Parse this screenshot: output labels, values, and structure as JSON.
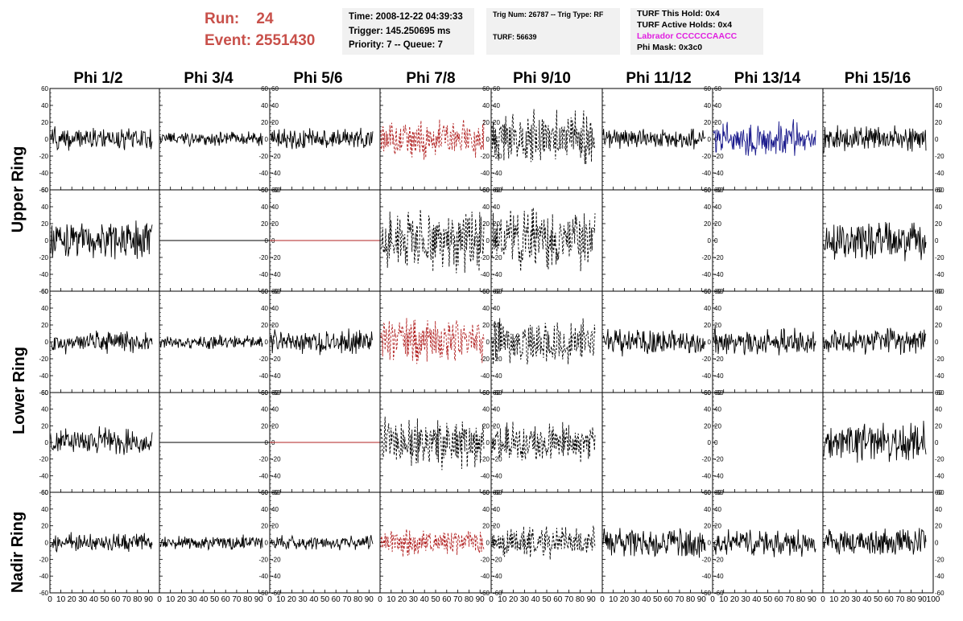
{
  "header": {
    "run_label": "Run:",
    "run_value": "24",
    "event_label": "Event:",
    "event_value": "2551430"
  },
  "info_box_1": {
    "time": "Time: 2008-12-22 04:39:33",
    "trigger": "Trigger: 145.250695 ms",
    "priority": "Priority: 7 -- Queue: 7"
  },
  "info_box_2": {
    "trig": "Trig Num: 26787 -- Trig Type: RF",
    "turf": "TURF: 56639"
  },
  "info_box_3": {
    "this_hold": "TURF This Hold: 0x4",
    "active_holds": "TURF Active Holds: 0x4",
    "labrador": "Labrador CCCCCCAACC",
    "phi_mask": "Phi Mask: 0x3c0"
  },
  "columns": [
    "Phi 1/2",
    "Phi 3/4",
    "Phi 5/6",
    "Phi 7/8",
    "Phi 9/10",
    "Phi 11/12",
    "Phi 13/14",
    "Phi 15/16"
  ],
  "rings": [
    "Upper Ring",
    "Lower Ring",
    "Nadir Ring"
  ],
  "colors": {
    "black": "#000000",
    "red": "#b22222",
    "blue": "#1a1a8c",
    "run_text": "#c8504a",
    "magenta": "#e020e0"
  },
  "chart_data": {
    "type": "line",
    "title": "",
    "ylim": [
      -60,
      60
    ],
    "xlim": [
      0,
      100
    ],
    "y_ticks": [
      -60,
      -40,
      -20,
      0,
      20,
      40,
      60
    ],
    "x_ticks": [
      0,
      10,
      20,
      30,
      40,
      50,
      60,
      70,
      80,
      90,
      100
    ],
    "panels": [
      {
        "row": 0,
        "col": 0,
        "style": "solid",
        "color": "black",
        "amplitude": 16
      },
      {
        "row": 0,
        "col": 1,
        "style": "solid",
        "color": "black",
        "amplitude": 10
      },
      {
        "row": 0,
        "col": 2,
        "style": "solid",
        "color": "black",
        "amplitude": 14
      },
      {
        "row": 0,
        "col": 3,
        "style": "dashed",
        "color": "red",
        "amplitude": 26
      },
      {
        "row": 0,
        "col": 4,
        "style": "dashed",
        "color": "black",
        "amplitude": 38
      },
      {
        "row": 0,
        "col": 5,
        "style": "solid",
        "color": "black",
        "amplitude": 14
      },
      {
        "row": 0,
        "col": 6,
        "style": "solid",
        "color": "blue",
        "amplitude": 26
      },
      {
        "row": 0,
        "col": 7,
        "style": "solid",
        "color": "black",
        "amplitude": 18
      },
      {
        "row": 1,
        "col": 0,
        "style": "solid",
        "color": "black",
        "amplitude": 26
      },
      {
        "row": 1,
        "col": 1,
        "style": "flat",
        "color": "black",
        "amplitude": 0
      },
      {
        "row": 1,
        "col": 2,
        "style": "flat",
        "color": "red",
        "amplitude": 0
      },
      {
        "row": 1,
        "col": 3,
        "style": "dashed",
        "color": "black",
        "amplitude": 42
      },
      {
        "row": 1,
        "col": 4,
        "style": "dashed",
        "color": "black",
        "amplitude": 42
      },
      {
        "row": 1,
        "col": 5,
        "style": "none",
        "color": "black",
        "amplitude": 0
      },
      {
        "row": 1,
        "col": 6,
        "style": "none",
        "color": "black",
        "amplitude": 0
      },
      {
        "row": 1,
        "col": 7,
        "style": "solid",
        "color": "black",
        "amplitude": 28
      },
      {
        "row": 2,
        "col": 0,
        "style": "solid",
        "color": "black",
        "amplitude": 16
      },
      {
        "row": 2,
        "col": 1,
        "style": "solid",
        "color": "black",
        "amplitude": 9
      },
      {
        "row": 2,
        "col": 2,
        "style": "solid",
        "color": "black",
        "amplitude": 18
      },
      {
        "row": 2,
        "col": 3,
        "style": "dashed",
        "color": "red",
        "amplitude": 32
      },
      {
        "row": 2,
        "col": 4,
        "style": "dashed",
        "color": "black",
        "amplitude": 30
      },
      {
        "row": 2,
        "col": 5,
        "style": "solid",
        "color": "black",
        "amplitude": 18
      },
      {
        "row": 2,
        "col": 6,
        "style": "solid",
        "color": "black",
        "amplitude": 18
      },
      {
        "row": 2,
        "col": 7,
        "style": "solid",
        "color": "black",
        "amplitude": 18
      },
      {
        "row": 3,
        "col": 0,
        "style": "solid",
        "color": "black",
        "amplitude": 20
      },
      {
        "row": 3,
        "col": 1,
        "style": "flat",
        "color": "black",
        "amplitude": 0
      },
      {
        "row": 3,
        "col": 2,
        "style": "flat",
        "color": "red",
        "amplitude": 0
      },
      {
        "row": 3,
        "col": 3,
        "style": "dashed",
        "color": "black",
        "amplitude": 34
      },
      {
        "row": 3,
        "col": 4,
        "style": "dashed",
        "color": "black",
        "amplitude": 28
      },
      {
        "row": 3,
        "col": 5,
        "style": "none",
        "color": "black",
        "amplitude": 0
      },
      {
        "row": 3,
        "col": 6,
        "style": "none",
        "color": "black",
        "amplitude": 0
      },
      {
        "row": 3,
        "col": 7,
        "style": "solid",
        "color": "black",
        "amplitude": 28
      },
      {
        "row": 4,
        "col": 0,
        "style": "solid",
        "color": "black",
        "amplitude": 14
      },
      {
        "row": 4,
        "col": 1,
        "style": "solid",
        "color": "black",
        "amplitude": 10
      },
      {
        "row": 4,
        "col": 2,
        "style": "solid",
        "color": "black",
        "amplitude": 10
      },
      {
        "row": 4,
        "col": 3,
        "style": "dashed",
        "color": "red",
        "amplitude": 18
      },
      {
        "row": 4,
        "col": 4,
        "style": "dashed",
        "color": "black",
        "amplitude": 22
      },
      {
        "row": 4,
        "col": 5,
        "style": "solid",
        "color": "black",
        "amplitude": 22
      },
      {
        "row": 4,
        "col": 6,
        "style": "solid",
        "color": "black",
        "amplitude": 18
      },
      {
        "row": 4,
        "col": 7,
        "style": "solid",
        "color": "black",
        "amplitude": 22
      }
    ]
  }
}
